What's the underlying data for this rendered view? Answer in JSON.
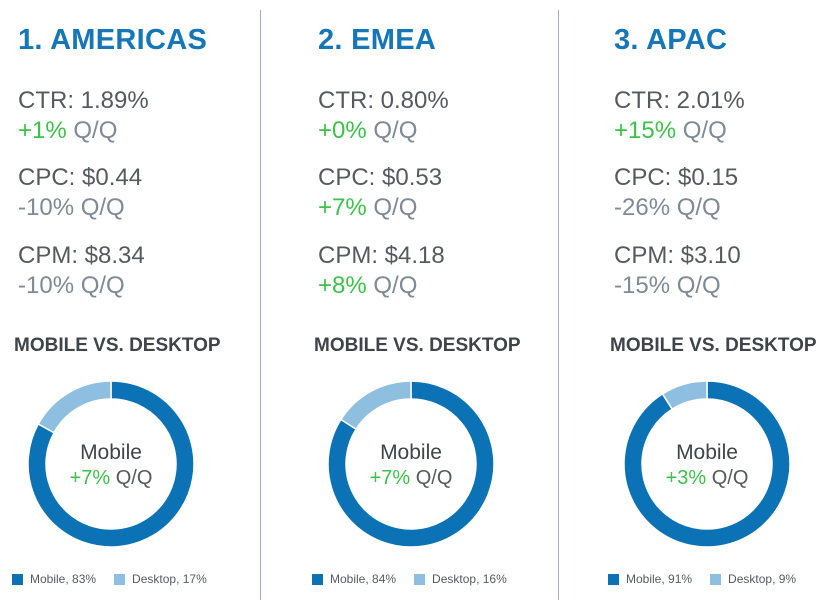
{
  "colors": {
    "mobile": "#0b72b5",
    "desktop": "#8fbfe0",
    "title": "#1576b8",
    "positive": "#3cc24a",
    "neutral": "#7e8a96"
  },
  "subheading": "MOBILE VS. DESKTOP",
  "regions": [
    {
      "title": "1. AMERICAS",
      "metrics": [
        {
          "label": "CTR: 1.89%",
          "change": "+1%",
          "change_sign": "pos",
          "suffix": "Q/Q"
        },
        {
          "label": "CPC: $0.44",
          "change": "-10%",
          "change_sign": "neg",
          "suffix": "Q/Q"
        },
        {
          "label": "CPM: $8.34",
          "change": "-10%",
          "change_sign": "neg",
          "suffix": "Q/Q"
        }
      ],
      "center_label": "Mobile",
      "center_change": "+7%",
      "center_suffix": "Q/Q",
      "legend": [
        "Mobile, 83%",
        "Desktop, 17%"
      ]
    },
    {
      "title": "2. EMEA",
      "metrics": [
        {
          "label": "CTR: 0.80%",
          "change": "+0%",
          "change_sign": "pos",
          "suffix": "Q/Q"
        },
        {
          "label": "CPC: $0.53",
          "change": "+7%",
          "change_sign": "pos",
          "suffix": "Q/Q"
        },
        {
          "label": "CPM: $4.18",
          "change": "+8%",
          "change_sign": "pos",
          "suffix": "Q/Q"
        }
      ],
      "center_label": "Mobile",
      "center_change": "+7%",
      "center_suffix": "Q/Q",
      "legend": [
        "Mobile, 84%",
        "Desktop, 16%"
      ]
    },
    {
      "title": "3. APAC",
      "metrics": [
        {
          "label": "CTR: 2.01%",
          "change": "+15%",
          "change_sign": "pos",
          "suffix": "Q/Q"
        },
        {
          "label": "CPC: $0.15",
          "change": "-26%",
          "change_sign": "neg",
          "suffix": "Q/Q"
        },
        {
          "label": "CPM: $3.10",
          "change": "-15%",
          "change_sign": "neg",
          "suffix": "Q/Q"
        }
      ],
      "center_label": "Mobile",
      "center_change": "+3%",
      "center_suffix": "Q/Q",
      "legend": [
        "Mobile, 91%",
        "Desktop, 9%"
      ]
    }
  ],
  "chart_data": [
    {
      "type": "pie",
      "categories": [
        "Mobile",
        "Desktop"
      ],
      "values": [
        83,
        17
      ],
      "title": "MOBILE VS. DESKTOP"
    },
    {
      "type": "pie",
      "categories": [
        "Mobile",
        "Desktop"
      ],
      "values": [
        84,
        16
      ],
      "title": "MOBILE VS. DESKTOP"
    },
    {
      "type": "pie",
      "categories": [
        "Mobile",
        "Desktop"
      ],
      "values": [
        91,
        9
      ],
      "title": "MOBILE VS. DESKTOP"
    }
  ]
}
